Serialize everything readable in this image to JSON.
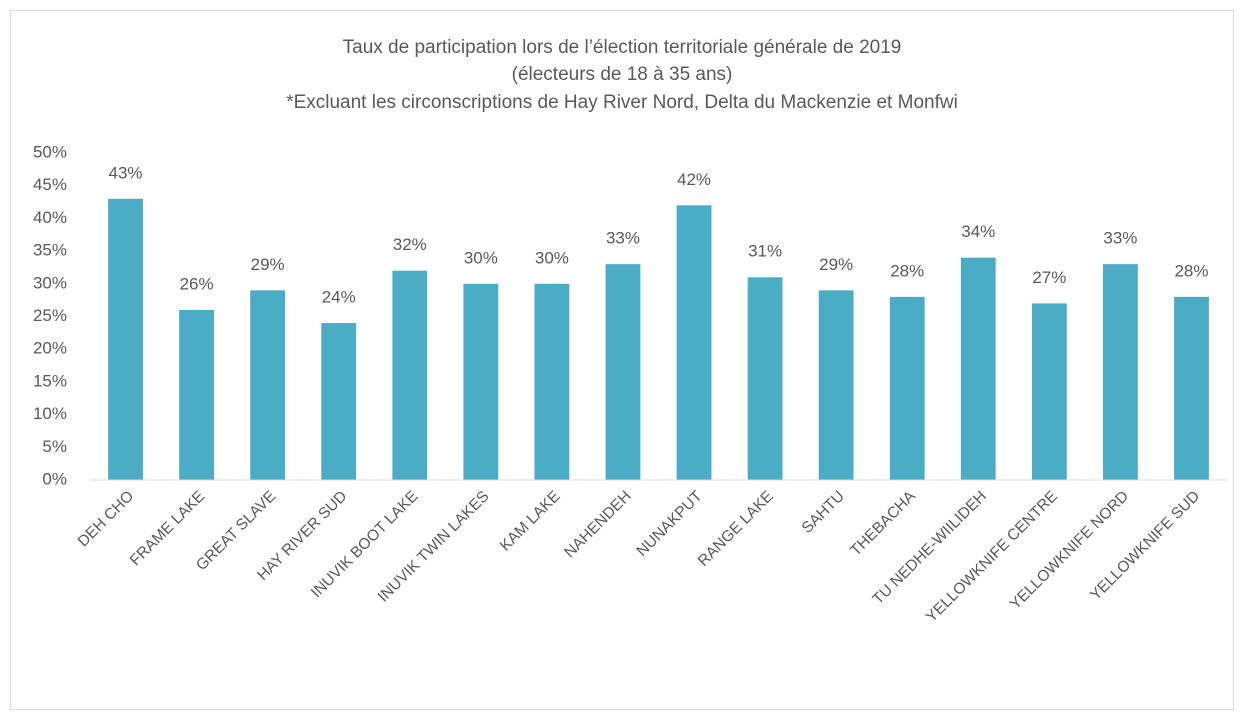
{
  "chart_data": {
    "type": "bar",
    "title": [
      "Taux de participation lors de l’élection territoriale générale de 2019",
      "(électeurs de 18 à 35 ans)",
      "*Excluant les circonscriptions de Hay River Nord, Delta du Mackenzie et Monfwi"
    ],
    "categories": [
      "DEH CHO",
      "FRAME LAKE",
      "GREAT SLAVE",
      "HAY RIVER SUD",
      "INUVIK BOOT LAKE",
      "INUVIK TWIN LAKES",
      "KAM LAKE",
      "NAHENDEH",
      "NUNAKPUT",
      "RANGE LAKE",
      "SAHTU",
      "THEBACHA",
      "TU NEDHE-WIILIDEH",
      "YELLOWKNIFE CENTRE",
      "YELLOWKNIFE NORD",
      "YELLOWKNIFE SUD"
    ],
    "values": [
      43,
      26,
      29,
      24,
      32,
      30,
      30,
      33,
      42,
      31,
      29,
      28,
      34,
      27,
      33,
      28
    ],
    "value_labels": [
      "43%",
      "26%",
      "29%",
      "24%",
      "32%",
      "30%",
      "30%",
      "33%",
      "42%",
      "31%",
      "29%",
      "28%",
      "34%",
      "27%",
      "33%",
      "28%"
    ],
    "color": "#4bacc6",
    "ylim": [
      0,
      50
    ],
    "yticks": [
      {
        "value": 0,
        "label": "0%"
      },
      {
        "value": 5,
        "label": "5%"
      },
      {
        "value": 10,
        "label": "10%"
      },
      {
        "value": 15,
        "label": "15%"
      },
      {
        "value": 20,
        "label": "20%"
      },
      {
        "value": 25,
        "label": "25%"
      },
      {
        "value": 30,
        "label": "30%"
      },
      {
        "value": 35,
        "label": "35%"
      },
      {
        "value": 40,
        "label": "40%"
      },
      {
        "value": 45,
        "label": "45%"
      },
      {
        "value": 50,
        "label": "50%"
      }
    ],
    "grid": false
  }
}
